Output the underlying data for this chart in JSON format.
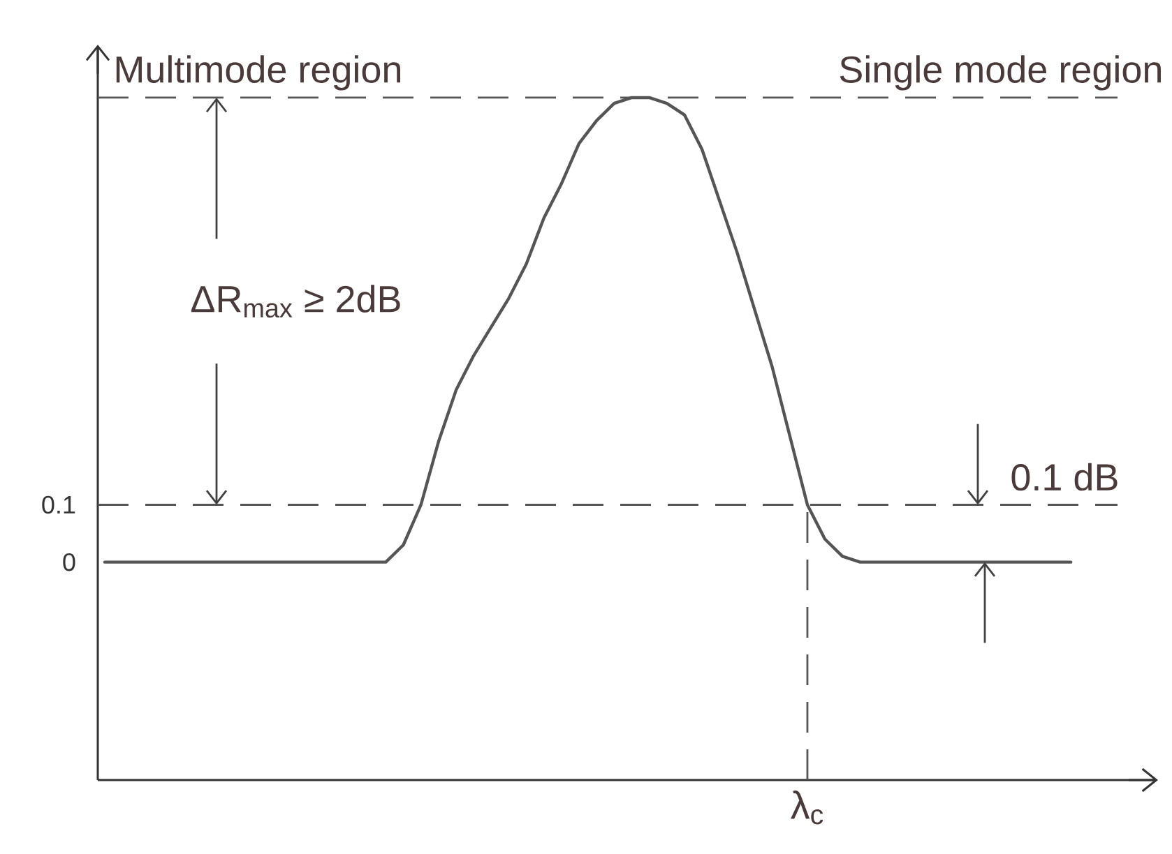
{
  "chart_data": {
    "type": "line",
    "categories": [
      null,
      null,
      null,
      null,
      null,
      null,
      null,
      null,
      null,
      null,
      null,
      null,
      null,
      null,
      null,
      null,
      null,
      null,
      null,
      null,
      null,
      null,
      null,
      null,
      null,
      null,
      null,
      null,
      null,
      null,
      null,
      null,
      null,
      null,
      null,
      null,
      null,
      null,
      null,
      null,
      "λ$_{c}$",
      null,
      null,
      null,
      null,
      null,
      null,
      null,
      null,
      null,
      null,
      null,
      null,
      null,
      null,
      null
    ],
    "values": [
      0,
      0,
      0,
      0,
      0,
      0,
      0,
      0,
      0,
      0,
      0,
      0,
      0,
      0,
      0,
      0,
      0,
      0.03,
      0.1,
      0.21,
      0.3,
      0.36,
      0.41,
      0.46,
      0.52,
      0.6,
      0.66,
      0.73,
      0.77,
      0.8,
      0.81,
      0.81,
      0.8,
      0.78,
      0.72,
      0.63,
      0.54,
      0.44,
      0.34,
      0.22,
      0.1,
      0.04,
      0.01,
      0,
      0,
      0,
      0,
      0,
      0,
      0,
      0,
      0,
      0,
      0,
      0,
      0
    ],
    "color": "#555555",
    "ylim": [
      -0.38,
      0.9
    ],
    "yticks": [
      0,
      0.1
    ],
    "ref_lines": [
      {
        "axis": "y",
        "value": 0.1,
        "line_style": "dashed",
        "color": "#555555"
      },
      {
        "axis": "y",
        "value": 0.81,
        "line_style": "dashed",
        "color": "#555555"
      },
      {
        "axis": "x",
        "value": "λ$_{c}$",
        "line_style": "dashed",
        "color": "#555555"
      }
    ],
    "annotations": [
      "Multimode region",
      "Single mode region",
      "ΔR$_{max}$ ≥ 2dB",
      "0.1 dB"
    ]
  }
}
